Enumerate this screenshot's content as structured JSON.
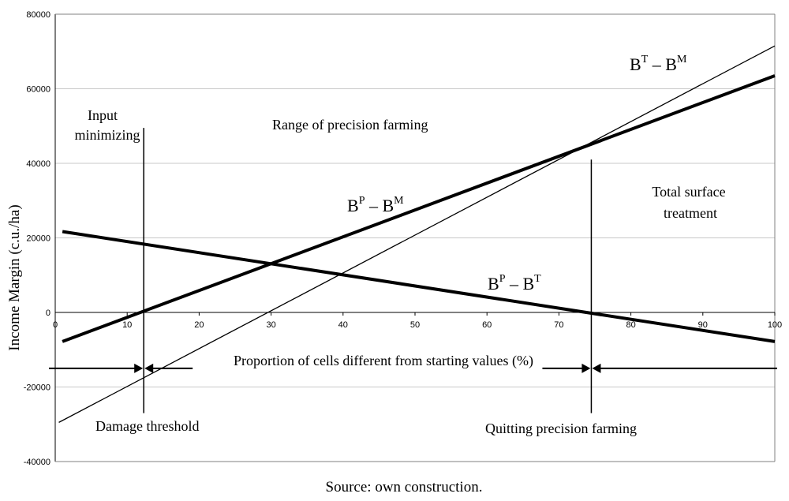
{
  "chart_data": {
    "type": "line",
    "title": "",
    "xlabel": "Proportion of cells different from starting values (%)",
    "ylabel": "Income Margin (c.u./ha)",
    "xlim": [
      0,
      100
    ],
    "ylim": [
      -40000,
      80000
    ],
    "x_ticks": [
      "0",
      "10",
      "20",
      "30",
      "40",
      "50",
      "60",
      "70",
      "80",
      "90",
      "100"
    ],
    "y_ticks": [
      "-40000",
      "-20000",
      "0",
      "20000",
      "40000",
      "60000",
      "80000"
    ],
    "grid": "horizontal",
    "series": [
      {
        "name": "B^T – B^M",
        "base": "B",
        "sup1": "T",
        "sep": " – ",
        "base2": "B",
        "sup2": "M",
        "weight": "thin",
        "x": [
          0.5,
          100
        ],
        "y": [
          -29500,
          71500
        ]
      },
      {
        "name": "B^P – B^M",
        "base": "B",
        "sup1": "P",
        "sep": " – ",
        "base2": "B",
        "sup2": "M",
        "weight": "thick",
        "x": [
          1,
          100
        ],
        "y": [
          -7800,
          63500
        ]
      },
      {
        "name": "B^P – B^T",
        "base": "B",
        "sup1": "P",
        "sep": " – ",
        "base2": "B",
        "sup2": "T",
        "weight": "thick",
        "x": [
          1,
          100
        ],
        "y": [
          21700,
          -7800
        ]
      }
    ],
    "vertical_markers": [
      {
        "name": "damage-threshold-marker",
        "x": 12.3,
        "y_from": 49500,
        "y_to": -27000
      },
      {
        "name": "quitting-precision-marker",
        "x": 74.5,
        "y_from": 41000,
        "y_to": -27000
      }
    ],
    "arrow_row_y": -15000,
    "arrow_points_x": [
      12.3,
      74.5
    ],
    "annotations": {
      "input_minimizing_1": "Input",
      "input_minimizing_2": "minimizing",
      "range": "Range of precision farming",
      "total_1": "Total surface",
      "total_2": "treatment",
      "damage": "Damage threshold",
      "quitting": "Quitting precision farming"
    }
  },
  "source": "Source: own construction."
}
